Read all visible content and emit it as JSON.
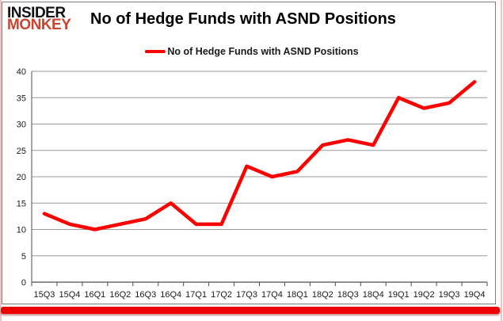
{
  "brand": {
    "name_line1": "INSIDER",
    "name_line2": "MONKEY"
  },
  "header": {
    "title": "No of Hedge Funds with ASND Positions"
  },
  "legend": {
    "label": "No of Hedge Funds with ASND Positions"
  },
  "chart_data": {
    "type": "line",
    "title": "No of Hedge Funds with ASND Positions",
    "categories": [
      "15Q3",
      "15Q4",
      "16Q1",
      "16Q2",
      "16Q3",
      "16Q4",
      "17Q1",
      "17Q2",
      "17Q3",
      "17Q4",
      "18Q1",
      "18Q2",
      "18Q3",
      "18Q4",
      "19Q1",
      "19Q2",
      "19Q3",
      "19Q4"
    ],
    "values": [
      13,
      11,
      10,
      11,
      12,
      15,
      11,
      11,
      22,
      20,
      21,
      26,
      27,
      26,
      35,
      33,
      34,
      38
    ],
    "xlabel": "",
    "ylabel": "",
    "ylim": [
      0,
      40
    ],
    "yticks": [
      0,
      5,
      10,
      15,
      20,
      25,
      30,
      35,
      40
    ],
    "grid": true,
    "legend_position": "top-center",
    "series_color": "#ff0000"
  },
  "colors": {
    "line": "#ff0000",
    "brand_black": "#111111",
    "brand_red": "#c9452f",
    "grid": "#9a9a9a",
    "axis": "#4d4d4d",
    "frame_border": "#7f7f7f",
    "bottom_bar": "#ee0000",
    "page_edge": "#f0c4c4",
    "text": "#1a1a1a"
  }
}
